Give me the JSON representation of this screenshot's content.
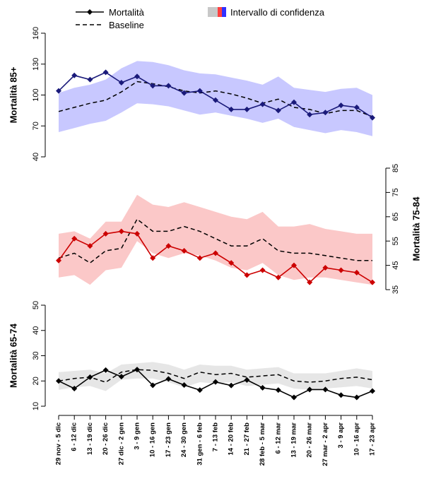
{
  "legend": {
    "mortality_label": "Mortalità",
    "baseline_label": "Baseline",
    "ci_label": "Intervallo di confidenza",
    "ci_swatch_colors": [
      "#c8c8c8",
      "#ff4040",
      "#3030ff"
    ]
  },
  "chart_data": {
    "type": "line",
    "categories": [
      "29 nov - 5 dic",
      "6 - 12 dic",
      "13 - 19 dic",
      "20 - 26 dic",
      "27 dic - 2 gen",
      "3 - 9 gen",
      "10 - 16 gen",
      "17 - 23 gen",
      "24 - 30 gen",
      "31 gen - 6 feb",
      "7 - 13 feb",
      "14 - 20 feb",
      "21 - 27 feb",
      "28 feb - 5 mar",
      "6 - 12 mar",
      "13 - 19 mar",
      "20 - 26 mar",
      "27 mar - 2 apr",
      "3 - 9 apr",
      "10 - 16 apr",
      "17 - 23 apr"
    ],
    "panels": [
      {
        "id": "85plus",
        "ylabel": "Mortalità 85+",
        "ylim": [
          40,
          160
        ],
        "yticks": [
          40,
          70,
          100,
          130,
          160
        ],
        "axis_side": "left",
        "line_color": "#1a1a7a",
        "band_color": "#c8c8ff",
        "mortality": [
          104,
          119,
          115,
          122,
          112,
          118,
          109,
          109,
          102,
          104,
          95,
          86,
          86,
          91,
          85,
          93,
          81,
          83,
          90,
          88,
          78
        ],
        "baseline": [
          84,
          88,
          92,
          95,
          103,
          113,
          111,
          108,
          104,
          102,
          104,
          101,
          97,
          92,
          96,
          88,
          86,
          82,
          85,
          85,
          79
        ],
        "ci_upper": [
          102,
          107,
          110,
          115,
          126,
          133,
          132,
          129,
          124,
          121,
          120,
          117,
          114,
          110,
          118,
          107,
          105,
          103,
          106,
          107,
          100
        ],
        "ci_lower": [
          64,
          68,
          72,
          75,
          83,
          92,
          91,
          89,
          85,
          81,
          83,
          80,
          77,
          73,
          77,
          69,
          66,
          63,
          66,
          64,
          60
        ]
      },
      {
        "id": "75to84",
        "ylabel": "Mortalità 75-84",
        "ylim": [
          35,
          85
        ],
        "yticks": [
          35,
          45,
          55,
          65,
          75,
          85
        ],
        "axis_side": "right",
        "line_color": "#cc0000",
        "band_color": "#fbc8c8",
        "mortality": [
          47,
          56,
          53,
          58,
          59,
          58,
          48,
          53,
          51,
          48,
          50,
          46,
          41,
          43,
          40,
          45,
          38,
          44,
          43,
          42,
          38
        ],
        "baseline": [
          48,
          50,
          46,
          51,
          52,
          64,
          59,
          59,
          61,
          59,
          56,
          53,
          53,
          56,
          51,
          50,
          50,
          49,
          48,
          47,
          47
        ],
        "ci_upper": [
          58,
          59,
          56,
          63,
          63,
          74,
          70,
          69,
          71,
          69,
          67,
          65,
          64,
          67,
          61,
          61,
          62,
          60,
          59,
          58,
          58
        ],
        "ci_lower": [
          40,
          41,
          37,
          43,
          44,
          55,
          50,
          48,
          50,
          49,
          47,
          44,
          43,
          46,
          41,
          39,
          40,
          40,
          39,
          38,
          37
        ]
      },
      {
        "id": "65to74",
        "ylabel": "Mortalità 65-74",
        "ylim": [
          10,
          50
        ],
        "yticks": [
          10,
          20,
          30,
          40,
          50
        ],
        "axis_side": "left",
        "line_color": "#000000",
        "band_color": "#e6e6e6",
        "mortality": [
          20,
          17,
          21.5,
          24.3,
          21.7,
          24.5,
          18.3,
          20.8,
          18.4,
          16.4,
          19.6,
          18.2,
          20.4,
          17.3,
          16.4,
          13.5,
          16.6,
          16.6,
          14.4,
          13.5,
          16
        ],
        "baseline": [
          20,
          21,
          21.5,
          19.5,
          23.5,
          24.5,
          24.2,
          23,
          21,
          23.5,
          22.5,
          23,
          21.5,
          22,
          22.5,
          20,
          19.5,
          20,
          21,
          21.5,
          20.5
        ],
        "ci_upper": [
          23.5,
          24,
          24.5,
          23,
          26.5,
          27,
          27.5,
          26.5,
          24.5,
          26.5,
          26,
          26,
          24.5,
          25,
          25.5,
          23,
          23,
          23,
          24,
          25,
          24
        ],
        "ci_lower": [
          16.5,
          17.5,
          18,
          16,
          20.5,
          21,
          21,
          19.5,
          17.5,
          19.5,
          19,
          19.5,
          18,
          18.5,
          19,
          17,
          16.5,
          17,
          17.5,
          18,
          17
        ]
      }
    ]
  }
}
